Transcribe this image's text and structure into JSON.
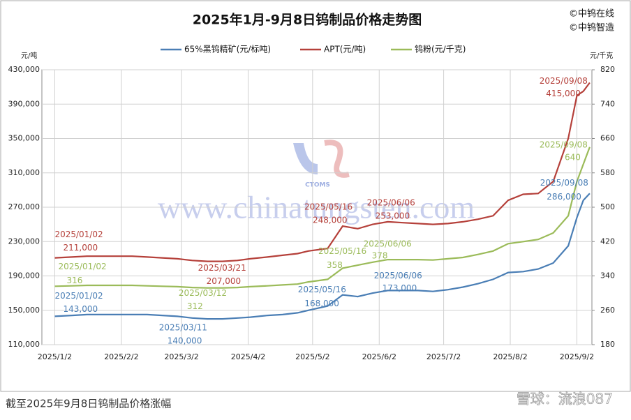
{
  "chart_data": {
    "type": "line",
    "title": "2025年1月-9月8日钨制品价格走势图",
    "brand_lines": [
      "©中钨在线",
      "©中钨智造"
    ],
    "y_axis_label": "元/吨",
    "y2_axis_label": "元/千克",
    "watermark": {
      "url": "www.chinatungsten.com",
      "logo": "CTOMS"
    },
    "x": [
      "2025/1/2",
      "2025/1/10",
      "2025/1/17",
      "2025/1/24",
      "2025/2/7",
      "2025/2/14",
      "2025/2/21",
      "2025/2/28",
      "2025/3/7",
      "2025/3/14",
      "2025/3/21",
      "2025/3/28",
      "2025/4/3",
      "2025/4/11",
      "2025/4/18",
      "2025/4/25",
      "2025/4/30",
      "2025/5/9",
      "2025/5/16",
      "2025/5/23",
      "2025/5/30",
      "2025/6/6",
      "2025/6/13",
      "2025/6/20",
      "2025/6/27",
      "2025/7/4",
      "2025/7/11",
      "2025/7/18",
      "2025/7/25",
      "2025/8/1",
      "2025/8/8",
      "2025/8/15",
      "2025/8/22",
      "2025/8/29",
      "2025/9/2",
      "2025/9/5",
      "2025/9/8"
    ],
    "xlim": [
      "2024/12/27",
      "2025/9/9"
    ],
    "xticks": [
      "2025/1/2",
      "2025/2/2",
      "2025/3/2",
      "2025/4/2",
      "2025/5/2",
      "2025/6/2",
      "2025/7/2",
      "2025/8/2",
      "2025/9/2"
    ],
    "ylim": [
      110000,
      430000
    ],
    "yticks": [
      {
        "value": 110000,
        "label": "110,000"
      },
      {
        "value": 150000,
        "label": "150,000"
      },
      {
        "value": 190000,
        "label": "190,000"
      },
      {
        "value": 230000,
        "label": "230,000"
      },
      {
        "value": 270000,
        "label": "270,000"
      },
      {
        "value": 310000,
        "label": "310,000"
      },
      {
        "value": 350000,
        "label": "350,000"
      },
      {
        "value": 390000,
        "label": "390,000"
      },
      {
        "value": 430000,
        "label": "430,000"
      }
    ],
    "y2lim": [
      180,
      820
    ],
    "y2ticks": [
      180,
      260,
      340,
      420,
      500,
      580,
      660,
      740,
      820
    ],
    "grid": true,
    "series": [
      {
        "name": "65%黑钨精矿(元/标吨)",
        "color": "#4a7eb5",
        "values": [
          143000,
          144000,
          145000,
          145000,
          145000,
          145000,
          144000,
          143000,
          141000,
          140000,
          140000,
          141000,
          142000,
          144000,
          145000,
          147000,
          150000,
          155000,
          168000,
          166000,
          170000,
          173000,
          173000,
          173000,
          172000,
          174000,
          177000,
          181000,
          186000,
          194000,
          195000,
          198000,
          205000,
          225000,
          258000,
          278000,
          286000
        ]
      },
      {
        "name": "APT(元/吨)",
        "color": "#b5403a",
        "values": [
          211000,
          212000,
          213000,
          213000,
          213000,
          212000,
          211000,
          210000,
          208000,
          207000,
          207000,
          208000,
          210000,
          212000,
          214000,
          216000,
          219000,
          222000,
          248000,
          245000,
          250000,
          253000,
          252000,
          251000,
          250000,
          251000,
          253000,
          256000,
          260000,
          278000,
          285000,
          286000,
          300000,
          350000,
          400000,
          405000,
          415000
        ]
      },
      {
        "name": "钨粉(元/千克)",
        "color": "#9bbb59",
        "axis": "y2",
        "values": [
          316,
          317,
          318,
          318,
          318,
          317,
          316,
          315,
          313,
          312,
          312,
          313,
          315,
          317,
          319,
          321,
          326,
          332,
          358,
          365,
          372,
          378,
          378,
          378,
          377,
          380,
          383,
          390,
          398,
          415,
          420,
          425,
          440,
          480,
          560,
          600,
          640
        ]
      }
    ],
    "annotations": [
      {
        "series": 1,
        "date": "2025/01/02",
        "value": 211000,
        "label": "211,000"
      },
      {
        "series": 1,
        "date": "2025/03/21",
        "value": 207000,
        "label": "207,000"
      },
      {
        "series": 1,
        "date": "2025/05/16",
        "value": 248000,
        "label": "248,000"
      },
      {
        "series": 1,
        "date": "2025/06/06",
        "value": 253000,
        "label": "253,000"
      },
      {
        "series": 1,
        "date": "2025/09/08",
        "value": 415000,
        "label": "415,000"
      },
      {
        "series": 2,
        "date": "2025/01/02",
        "value": 316,
        "label": "316"
      },
      {
        "series": 2,
        "date": "2025/03/12",
        "value": 312,
        "label": "312"
      },
      {
        "series": 2,
        "date": "2025/05/16",
        "value": 358,
        "label": "358"
      },
      {
        "series": 2,
        "date": "2025/06/06",
        "value": 378,
        "label": "378"
      },
      {
        "series": 2,
        "date": "2025/09/08",
        "value": 640,
        "label": "640"
      },
      {
        "series": 0,
        "date": "2025/01/02",
        "value": 143000,
        "label": "143,000"
      },
      {
        "series": 0,
        "date": "2025/03/11",
        "value": 140000,
        "label": "140,000"
      },
      {
        "series": 0,
        "date": "2025/05/16",
        "value": 168000,
        "label": "168,000"
      },
      {
        "series": 0,
        "date": "2025/06/06",
        "value": 173000,
        "label": "173,000"
      },
      {
        "series": 0,
        "date": "2025/09/08",
        "value": 286000,
        "label": "286,000"
      }
    ]
  },
  "caption": "截至2025年9月8日钨制品价格涨幅",
  "footer_watermark": "雪球：流浪087"
}
